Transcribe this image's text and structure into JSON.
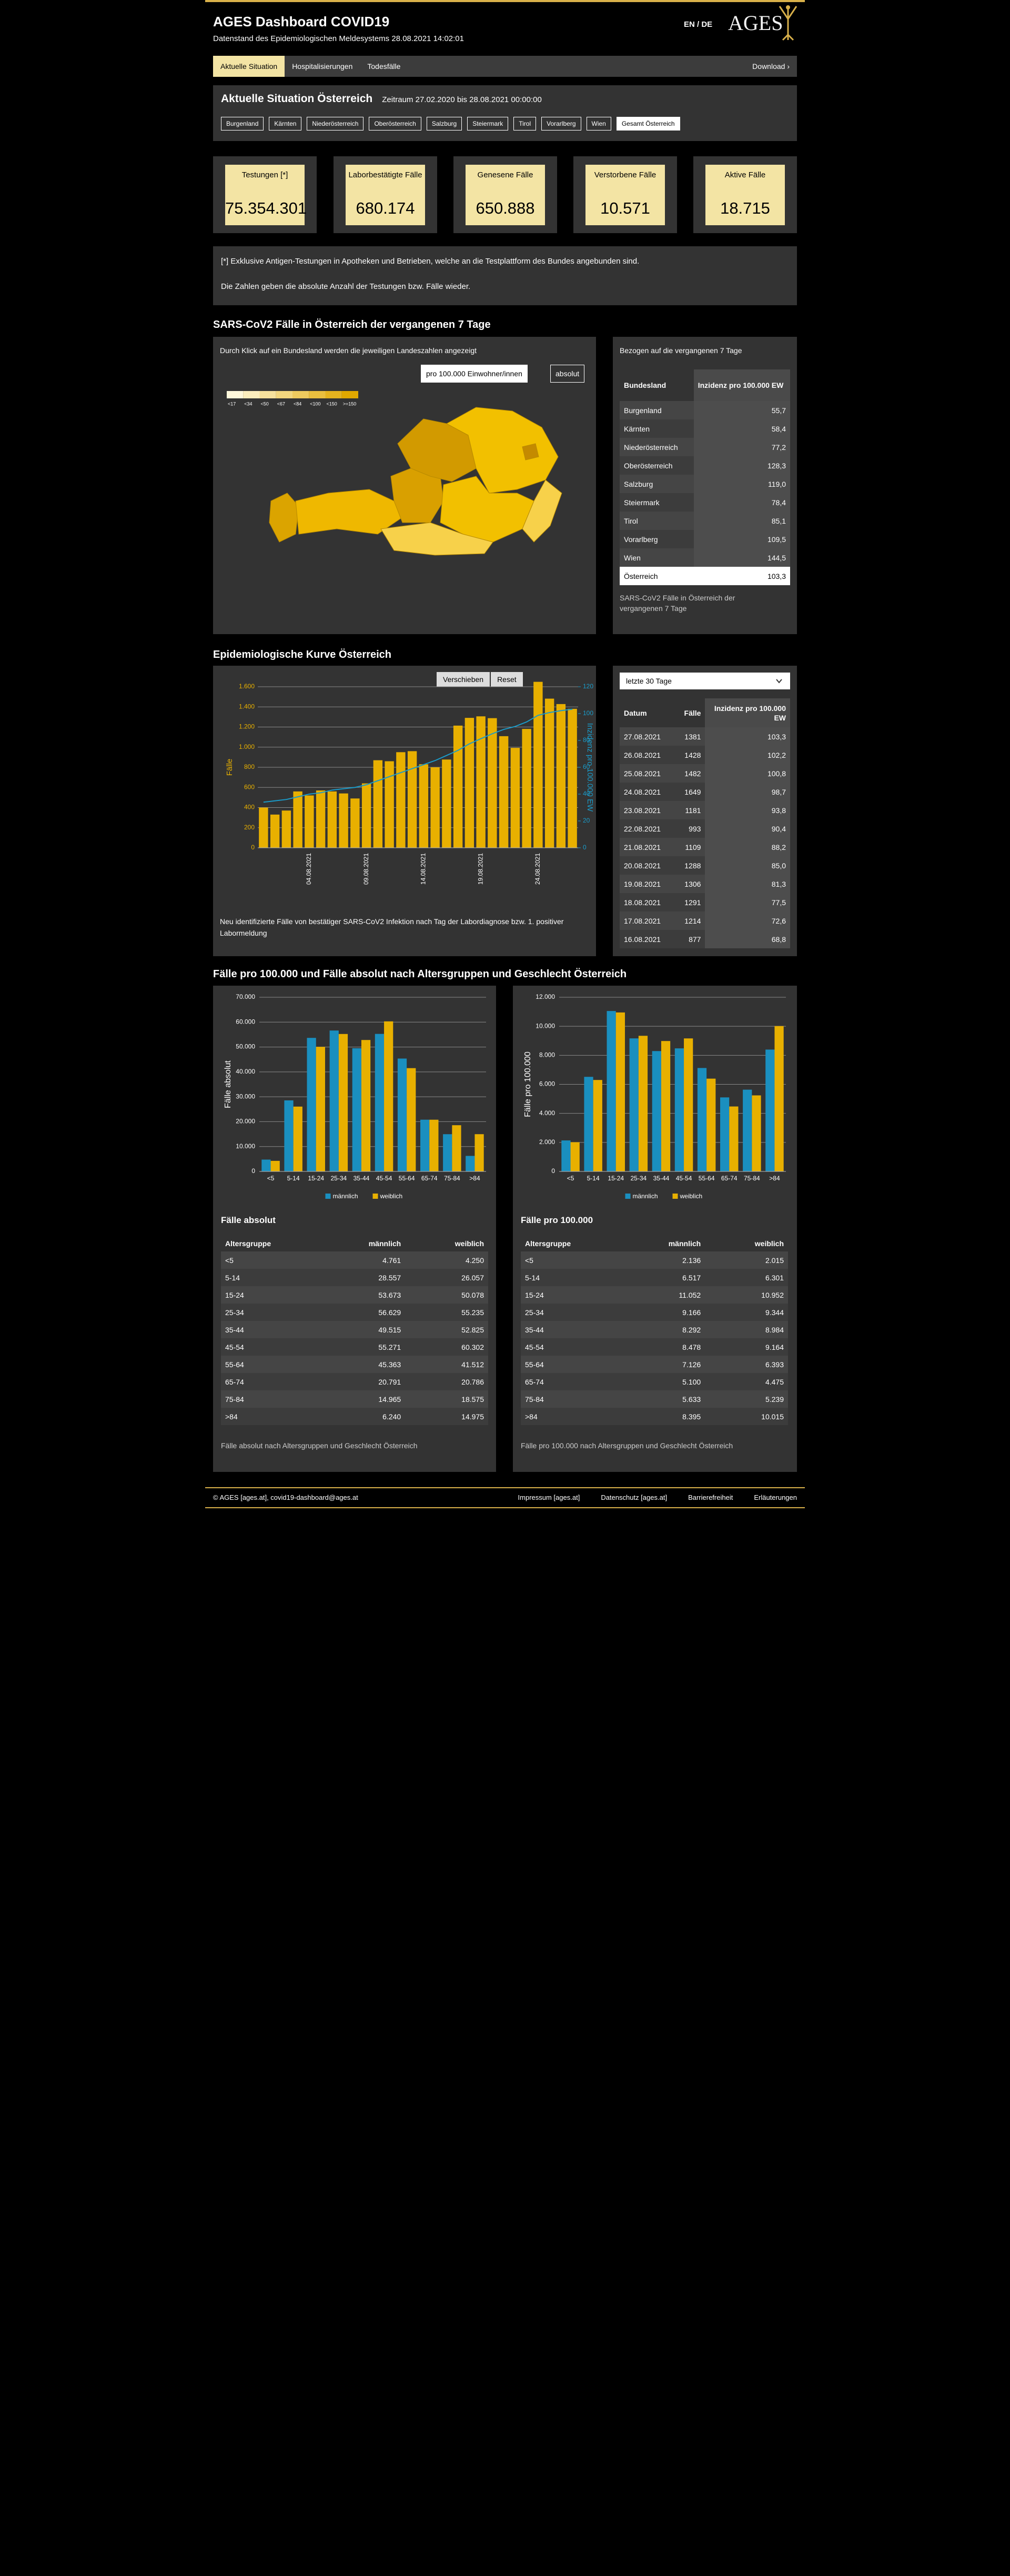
{
  "header": {
    "title": "AGES Dashboard COVID19",
    "subtitle": "Datenstand des Epidemiologischen Meldesystems 28.08.2021 14:02:01",
    "language": "EN / DE",
    "logo": "AGES"
  },
  "nav": {
    "tabs": [
      "Aktuelle Situation",
      "Hospitalisierungen",
      "Todesfälle"
    ],
    "download": "Download ›"
  },
  "situation": {
    "title": "Aktuelle Situation Österreich",
    "period": "Zeitraum 27.02.2020 bis 28.08.2021 00:00:00",
    "regions": [
      "Burgenland",
      "Kärnten",
      "Niederösterreich",
      "Oberösterreich",
      "Salzburg",
      "Steiermark",
      "Tirol",
      "Vorarlberg",
      "Wien",
      "Gesamt Österreich"
    ]
  },
  "kpis": [
    {
      "label": "Testungen [*]",
      "value": "75.354.301"
    },
    {
      "label": "Laborbestätigte Fälle",
      "value": "680.174"
    },
    {
      "label": "Genesene Fälle",
      "value": "650.888"
    },
    {
      "label": "Verstorbene Fälle",
      "value": "10.571"
    },
    {
      "label": "Aktive Fälle",
      "value": "18.715"
    }
  ],
  "note": {
    "lines": [
      "[*] Exklusive Antigen-Testungen in Apotheken und Betrieben, welche an die Testplattform des Bundes angebunden sind.",
      "Die Zahlen geben die absolute Anzahl der Testungen bzw. Fälle wieder."
    ]
  },
  "map_section": {
    "heading": "SARS-CoV2 Fälle in Österreich der vergangenen 7 Tage",
    "hint": "Durch Klick auf ein Bundesland werden die jeweiligen Landeszahlen angezeigt",
    "toggle": [
      "pro 100.000 Einwohner/innen",
      "absolut"
    ],
    "legend": [
      "<17",
      "<34",
      "<50",
      "<67",
      "<84",
      "<100",
      "<150",
      ">=150"
    ],
    "table_title": "Bezogen auf die vergangenen 7 Tage",
    "table": {
      "headers": [
        "Bundesland",
        "Inzidenz pro 100.000 EW"
      ],
      "rows": [
        [
          "Burgenland",
          "55,7"
        ],
        [
          "Kärnten",
          "58,4"
        ],
        [
          "Niederösterreich",
          "77,2"
        ],
        [
          "Oberösterreich",
          "128,3"
        ],
        [
          "Salzburg",
          "119,0"
        ],
        [
          "Steiermark",
          "78,4"
        ],
        [
          "Tirol",
          "85,1"
        ],
        [
          "Vorarlberg",
          "109,5"
        ],
        [
          "Wien",
          "144,5"
        ],
        [
          "Österreich",
          "103,3"
        ]
      ]
    },
    "caption": "SARS-CoV2 Fälle in Österreich der vergangenen 7 Tage"
  },
  "epi_section": {
    "heading": "Epidemiologische Kurve Österreich",
    "tools": [
      "Verschieben",
      "Reset"
    ],
    "note": "Neu identifizierte Fälle von bestätiger SARS-CoV2 Infektion nach Tag der Labordiagnose bzw. 1. positiver Labormeldung",
    "select": "letzte 30 Tage",
    "table": {
      "headers": [
        "Datum",
        "Fälle",
        "Inzidenz pro 100.000 EW"
      ],
      "rows": [
        [
          "27.08.2021",
          "1381",
          "103,3"
        ],
        [
          "26.08.2021",
          "1428",
          "102,2"
        ],
        [
          "25.08.2021",
          "1482",
          "100,8"
        ],
        [
          "24.08.2021",
          "1649",
          "98,7"
        ],
        [
          "23.08.2021",
          "1181",
          "93,8"
        ],
        [
          "22.08.2021",
          "993",
          "90,4"
        ],
        [
          "21.08.2021",
          "1109",
          "88,2"
        ],
        [
          "20.08.2021",
          "1288",
          "85,0"
        ],
        [
          "19.08.2021",
          "1306",
          "81,3"
        ],
        [
          "18.08.2021",
          "1291",
          "77,5"
        ],
        [
          "17.08.2021",
          "1214",
          "72,6"
        ],
        [
          "16.08.2021",
          "877",
          "68,8"
        ]
      ]
    }
  },
  "age_section": {
    "heading": "Fälle pro 100.000 und Fälle absolut nach Altersgruppen und Geschlecht Österreich",
    "tables": [
      {
        "title": "Fälle absolut",
        "headers": [
          "Altersgruppe",
          "männlich",
          "weiblich"
        ],
        "rows": [
          [
            "<5",
            "4.761",
            "4.250"
          ],
          [
            "5-14",
            "28.557",
            "26.057"
          ],
          [
            "15-24",
            "53.673",
            "50.078"
          ],
          [
            "25-34",
            "56.629",
            "55.235"
          ],
          [
            "35-44",
            "49.515",
            "52.825"
          ],
          [
            "45-54",
            "55.271",
            "60.302"
          ],
          [
            "55-64",
            "45.363",
            "41.512"
          ],
          [
            "65-74",
            "20.791",
            "20.786"
          ],
          [
            "75-84",
            "14.965",
            "18.575"
          ],
          [
            ">84",
            "6.240",
            "14.975"
          ]
        ],
        "caption": "Fälle absolut nach Altersgruppen und Geschlecht Österreich"
      },
      {
        "title": "Fälle pro 100.000",
        "headers": [
          "Altersgruppe",
          "männlich",
          "weiblich"
        ],
        "rows": [
          [
            "<5",
            "2.136",
            "2.015"
          ],
          [
            "5-14",
            "6.517",
            "6.301"
          ],
          [
            "15-24",
            "11.052",
            "10.952"
          ],
          [
            "25-34",
            "9.166",
            "9.344"
          ],
          [
            "35-44",
            "8.292",
            "8.984"
          ],
          [
            "45-54",
            "8.478",
            "9.164"
          ],
          [
            "55-64",
            "7.126",
            "6.393"
          ],
          [
            "65-74",
            "5.100",
            "4.475"
          ],
          [
            "75-84",
            "5.633",
            "5.239"
          ],
          [
            ">84",
            "8.395",
            "10.015"
          ]
        ],
        "caption": "Fälle pro 100.000 nach Altersgruppen und Geschlecht Österreich"
      }
    ]
  },
  "footer": {
    "copyright": "© AGES [ages.at], covid19-dashboard@ages.at",
    "links": [
      "Impressum [ages.at]",
      "Datenschutz [ages.at]",
      "Barrierefreiheit",
      "Erläuterungen"
    ]
  },
  "chart_data": [
    {
      "type": "bar_line",
      "categories": [
        null,
        null,
        null,
        null,
        "04.08.2021",
        null,
        null,
        null,
        null,
        "09.08.2021",
        null,
        null,
        null,
        null,
        "14.08.2021",
        null,
        null,
        null,
        null,
        "19.08.2021",
        null,
        null,
        null,
        null,
        "24.08.2021",
        null,
        null,
        null
      ],
      "ylabel": "Fälle",
      "y2label": "Inzidenz pro 100.000 EW",
      "ylim": [
        0,
        1600
      ],
      "yticks": [
        0,
        200,
        400,
        600,
        800,
        {
          "value": 1000,
          "label": "1.000"
        },
        {
          "value": 1200,
          "label": "1.200"
        },
        {
          "value": 1400,
          "label": "1.400"
        },
        {
          "value": 1600,
          "label": "1.600"
        }
      ],
      "y2lim": [
        0,
        120
      ],
      "y2ticks": [
        0,
        20,
        40,
        60,
        80,
        100,
        120
      ],
      "grid": true,
      "series": [
        {
          "type": "bar",
          "color": "#e8b000",
          "values": [
            400,
            330,
            370,
            560,
            520,
            570,
            560,
            540,
            490,
            640,
            870,
            860,
            950,
            960,
            830,
            800,
            877,
            1214,
            1291,
            1306,
            1288,
            1109,
            993,
            1181,
            1649,
            1482,
            1428,
            1381
          ]
        },
        {
          "type": "line",
          "axis": "y2",
          "color": "#1a9bc9",
          "values": [
            34,
            35,
            36,
            38,
            40,
            41,
            43,
            44,
            45,
            47,
            50,
            53,
            56,
            59,
            62,
            65,
            68.8,
            72.6,
            77.5,
            81.3,
            85.0,
            88.2,
            90.4,
            93.8,
            98.7,
            100.8,
            102.2,
            103.3
          ]
        }
      ]
    },
    {
      "type": "bar",
      "categories": [
        "<5",
        "5-14",
        "15-24",
        "25-34",
        "35-44",
        "45-54",
        "55-64",
        "65-74",
        "75-84",
        ">84"
      ],
      "ylabel": "Fälle absolut",
      "ylim": [
        0,
        70000
      ],
      "yticks": [
        0,
        {
          "value": 10000,
          "label": "10.000"
        },
        {
          "value": 20000,
          "label": "20.000"
        },
        {
          "value": 30000,
          "label": "30.000"
        },
        {
          "value": 40000,
          "label": "40.000"
        },
        {
          "value": 50000,
          "label": "50.000"
        },
        {
          "value": 60000,
          "label": "60.000"
        },
        {
          "value": 70000,
          "label": "70.000"
        }
      ],
      "grid": true,
      "series": [
        {
          "name": "männlich",
          "color": "#1a8fbf",
          "values": [
            4761,
            28557,
            53673,
            56629,
            49515,
            55271,
            45363,
            20791,
            14965,
            6240
          ]
        },
        {
          "name": "weiblich",
          "color": "#e8b000",
          "values": [
            4250,
            26057,
            50078,
            55235,
            52825,
            60302,
            41512,
            20786,
            18575,
            14975
          ]
        }
      ]
    },
    {
      "type": "bar",
      "categories": [
        "<5",
        "5-14",
        "15-24",
        "25-34",
        "35-44",
        "45-54",
        "55-64",
        "65-74",
        "75-84",
        ">84"
      ],
      "ylabel": "Fälle pro 100.000",
      "ylim": [
        0,
        12000
      ],
      "yticks": [
        0,
        {
          "value": 2000,
          "label": "2.000"
        },
        {
          "value": 4000,
          "label": "4.000"
        },
        {
          "value": 6000,
          "label": "6.000"
        },
        {
          "value": 8000,
          "label": "8.000"
        },
        {
          "value": 10000,
          "label": "10.000"
        },
        {
          "value": 12000,
          "label": "12.000"
        }
      ],
      "grid": true,
      "series": [
        {
          "name": "männlich",
          "color": "#1a8fbf",
          "values": [
            2136,
            6517,
            11052,
            9166,
            8292,
            8478,
            7126,
            5100,
            5633,
            8395
          ]
        },
        {
          "name": "weiblich",
          "color": "#e8b000",
          "values": [
            2015,
            6301,
            10952,
            9344,
            8984,
            9164,
            6393,
            4475,
            5239,
            10015
          ]
        }
      ]
    }
  ]
}
